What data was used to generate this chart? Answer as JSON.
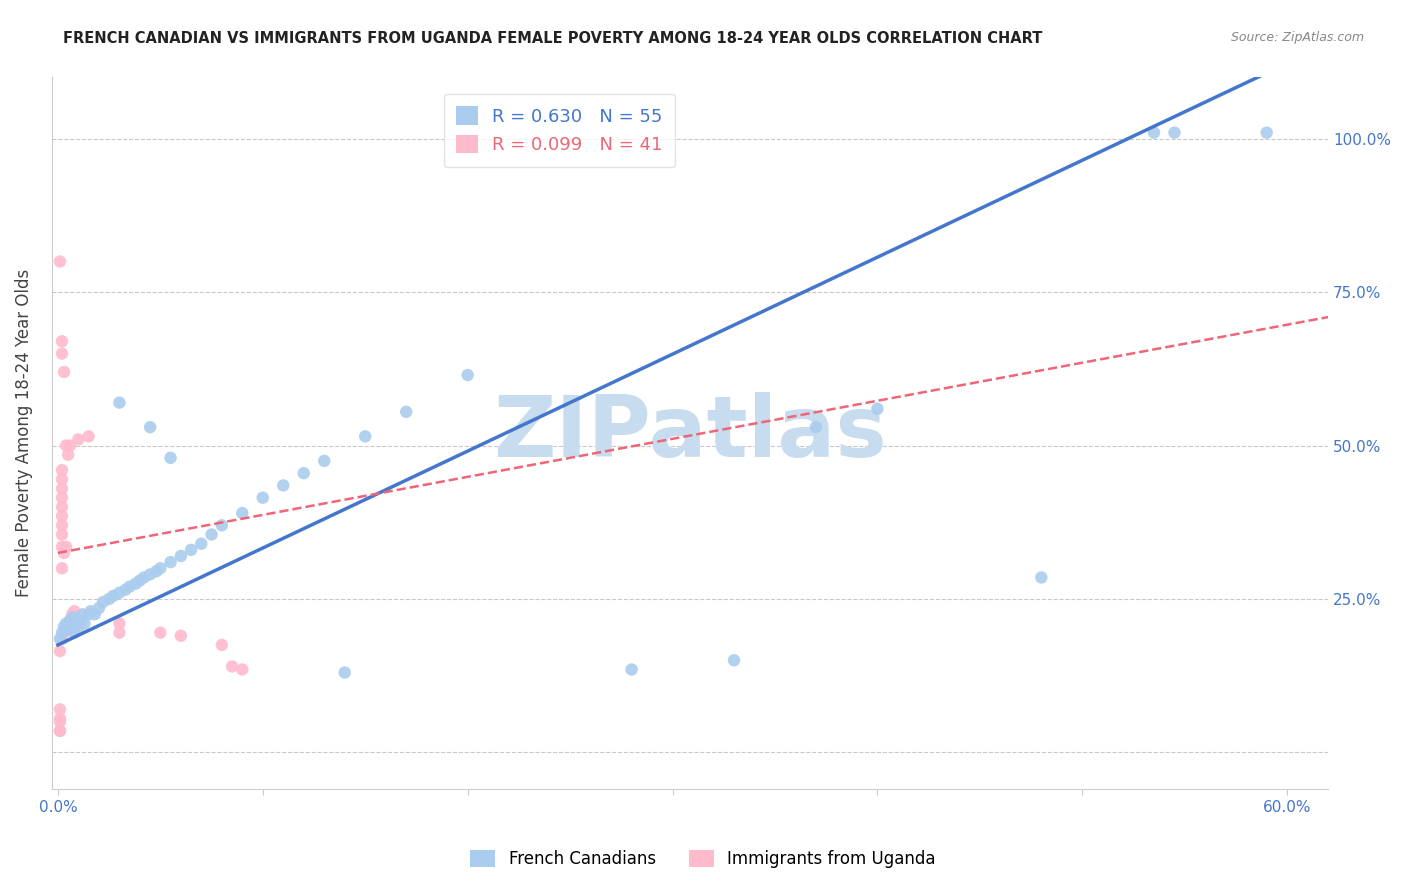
{
  "title": "FRENCH CANADIAN VS IMMIGRANTS FROM UGANDA FEMALE POVERTY AMONG 18-24 YEAR OLDS CORRELATION CHART",
  "source": "Source: ZipAtlas.com",
  "ylabel": "Female Poverty Among 18-24 Year Olds",
  "xlabel_ticks": [
    "0.0%",
    "",
    "",
    "",
    "",
    "",
    "60.0%"
  ],
  "xlabel_vals": [
    0,
    0.1,
    0.2,
    0.3,
    0.4,
    0.5,
    0.6
  ],
  "ylabel_ticks": [
    "",
    "25.0%",
    "50.0%",
    "75.0%",
    "100.0%"
  ],
  "ylabel_vals": [
    0,
    0.25,
    0.5,
    0.75,
    1.0
  ],
  "xlim": [
    -0.003,
    0.62
  ],
  "ylim": [
    -0.06,
    1.1
  ],
  "blue_R": "0.630",
  "blue_N": "55",
  "pink_R": "0.099",
  "pink_N": "41",
  "legend_label_blue": "French Canadians",
  "legend_label_pink": "Immigrants from Uganda",
  "watermark": "ZIPatlas",
  "blue_scatter": [
    [
      0.001,
      0.185
    ],
    [
      0.002,
      0.195
    ],
    [
      0.003,
      0.205
    ],
    [
      0.004,
      0.21
    ],
    [
      0.005,
      0.2
    ],
    [
      0.006,
      0.215
    ],
    [
      0.007,
      0.22
    ],
    [
      0.008,
      0.195
    ],
    [
      0.009,
      0.21
    ],
    [
      0.01,
      0.2
    ],
    [
      0.011,
      0.215
    ],
    [
      0.012,
      0.225
    ],
    [
      0.013,
      0.21
    ],
    [
      0.015,
      0.225
    ],
    [
      0.016,
      0.23
    ],
    [
      0.018,
      0.225
    ],
    [
      0.02,
      0.235
    ],
    [
      0.022,
      0.245
    ],
    [
      0.025,
      0.25
    ],
    [
      0.027,
      0.255
    ],
    [
      0.03,
      0.26
    ],
    [
      0.033,
      0.265
    ],
    [
      0.035,
      0.27
    ],
    [
      0.038,
      0.275
    ],
    [
      0.04,
      0.28
    ],
    [
      0.042,
      0.285
    ],
    [
      0.045,
      0.29
    ],
    [
      0.048,
      0.295
    ],
    [
      0.05,
      0.3
    ],
    [
      0.055,
      0.31
    ],
    [
      0.06,
      0.32
    ],
    [
      0.065,
      0.33
    ],
    [
      0.07,
      0.34
    ],
    [
      0.075,
      0.355
    ],
    [
      0.08,
      0.37
    ],
    [
      0.09,
      0.39
    ],
    [
      0.1,
      0.415
    ],
    [
      0.11,
      0.435
    ],
    [
      0.12,
      0.455
    ],
    [
      0.13,
      0.475
    ],
    [
      0.15,
      0.515
    ],
    [
      0.17,
      0.555
    ],
    [
      0.2,
      0.615
    ],
    [
      0.03,
      0.57
    ],
    [
      0.045,
      0.53
    ],
    [
      0.055,
      0.48
    ],
    [
      0.14,
      0.13
    ],
    [
      0.28,
      0.135
    ],
    [
      0.33,
      0.15
    ],
    [
      0.37,
      0.53
    ],
    [
      0.4,
      0.56
    ],
    [
      0.48,
      0.285
    ],
    [
      0.535,
      1.01
    ],
    [
      0.545,
      1.01
    ],
    [
      0.59,
      1.01
    ]
  ],
  "pink_scatter": [
    [
      0.001,
      0.035
    ],
    [
      0.001,
      0.055
    ],
    [
      0.001,
      0.07
    ],
    [
      0.001,
      0.165
    ],
    [
      0.002,
      0.185
    ],
    [
      0.002,
      0.3
    ],
    [
      0.002,
      0.335
    ],
    [
      0.002,
      0.355
    ],
    [
      0.002,
      0.37
    ],
    [
      0.002,
      0.385
    ],
    [
      0.002,
      0.4
    ],
    [
      0.002,
      0.415
    ],
    [
      0.002,
      0.43
    ],
    [
      0.002,
      0.445
    ],
    [
      0.002,
      0.46
    ],
    [
      0.003,
      0.195
    ],
    [
      0.003,
      0.325
    ],
    [
      0.003,
      0.62
    ],
    [
      0.004,
      0.205
    ],
    [
      0.004,
      0.335
    ],
    [
      0.004,
      0.5
    ],
    [
      0.005,
      0.21
    ],
    [
      0.005,
      0.485
    ],
    [
      0.006,
      0.215
    ],
    [
      0.006,
      0.5
    ],
    [
      0.007,
      0.225
    ],
    [
      0.008,
      0.23
    ],
    [
      0.01,
      0.51
    ],
    [
      0.015,
      0.515
    ],
    [
      0.001,
      0.8
    ],
    [
      0.002,
      0.65
    ],
    [
      0.002,
      0.67
    ],
    [
      0.03,
      0.195
    ],
    [
      0.03,
      0.21
    ],
    [
      0.05,
      0.195
    ],
    [
      0.06,
      0.19
    ],
    [
      0.001,
      0.035
    ],
    [
      0.001,
      0.05
    ],
    [
      0.08,
      0.175
    ],
    [
      0.085,
      0.14
    ],
    [
      0.09,
      0.135
    ]
  ],
  "blue_line_color": "#4477CC",
  "pink_line_color": "#EE6677",
  "blue_scatter_color": "#AACCEE",
  "pink_scatter_color": "#FFBBCC",
  "grid_color": "#BBBBBB",
  "title_color": "#222222",
  "axis_tick_color": "#4477CC",
  "right_tick_color": "#4477CC",
  "watermark_color": "#C8DCEF",
  "blue_line_intercept": 0.175,
  "blue_line_slope": 1.58,
  "pink_line_intercept": 0.325,
  "pink_line_slope": 0.62
}
